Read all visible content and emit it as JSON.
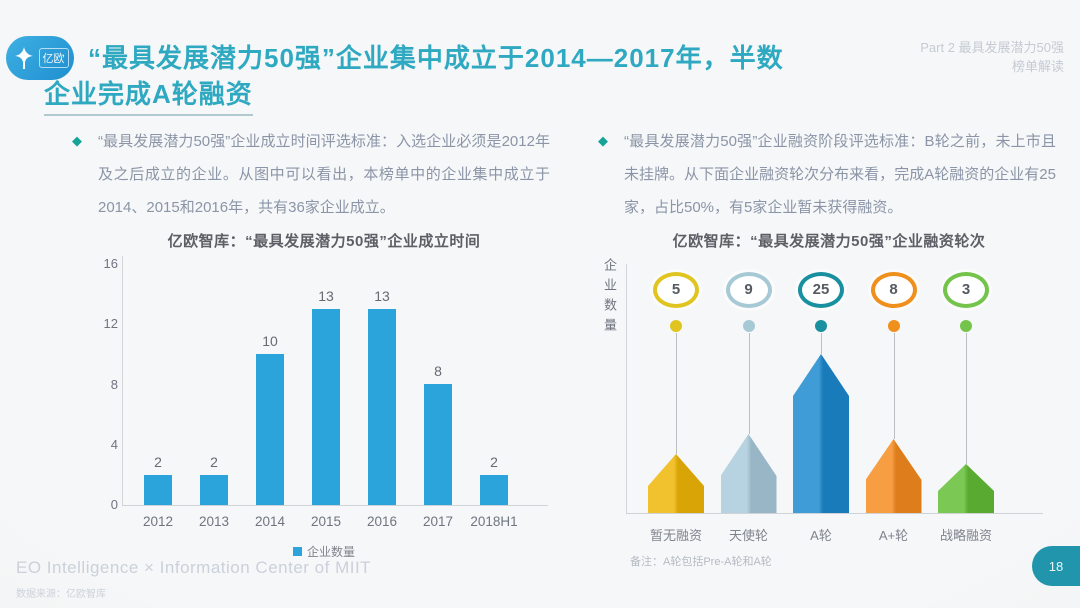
{
  "page": {
    "page_number": "18",
    "accent_teal": "#2FA9C1",
    "badge_teal": "#2095AB"
  },
  "header": {
    "logo_text": "亿欧",
    "title_line1": "“最具发展潜力50强”企业集中成立于2014—2017年，半数",
    "title_line2": "企业完成A轮融资",
    "part_line1": "Part 2 最具发展潜力50强",
    "part_line2": "榜单解读"
  },
  "bullets": {
    "left": "“最具发展潜力50强”企业成立时间评选标准：入选企业必须是2012年及之后成立的企业。从图中可以看出，本榜单中的企业集中成立于2014、2015和2016年，共有36家企业成立。",
    "right": "“最具发展潜力50强”企业融资阶段评选标准：B轮之前，未上市且未挂牌。从下面企业融资轮次分布来看，完成A轮融资的企业有25家，占比50%，有5家企业暂未获得融资。"
  },
  "chart_data": [
    {
      "type": "bar",
      "title": "亿欧智库：“最具发展潜力50强”企业成立时间",
      "categories": [
        "2012",
        "2013",
        "2014",
        "2015",
        "2016",
        "2017",
        "2018H1"
      ],
      "values": [
        2,
        2,
        10,
        13,
        13,
        8,
        2
      ],
      "ylim": [
        0,
        16
      ],
      "yticks": [
        0,
        4,
        8,
        12,
        16
      ],
      "legend": [
        "企业数量"
      ],
      "legend_position": "bottom",
      "grid": false,
      "bar_color": "#2AA4DA"
    },
    {
      "type": "bar",
      "variant": "rocket-funnel",
      "title": "亿欧智库：“最具发展潜力50强”企业融资轮次",
      "ylabel": "企业数量",
      "categories": [
        "暂无融资",
        "天使轮",
        "A轮",
        "A+轮",
        "战略融资"
      ],
      "values": [
        5,
        9,
        25,
        8,
        3
      ],
      "colors": [
        "#F0B606",
        "#A9CBDC",
        "#1C89CE",
        "#F68B1F",
        "#62BE35"
      ],
      "ring_colors": [
        "#E0C520",
        "#A7C9D6",
        "#18909F",
        "#EF8F1C",
        "#74C44C"
      ],
      "note": "备注：A轮包括Pre-A轮和A轮"
    }
  ],
  "footer": {
    "line1": "EO Intelligence × Information Center of MIIT",
    "line2": "数据来源：亿欧智库"
  }
}
